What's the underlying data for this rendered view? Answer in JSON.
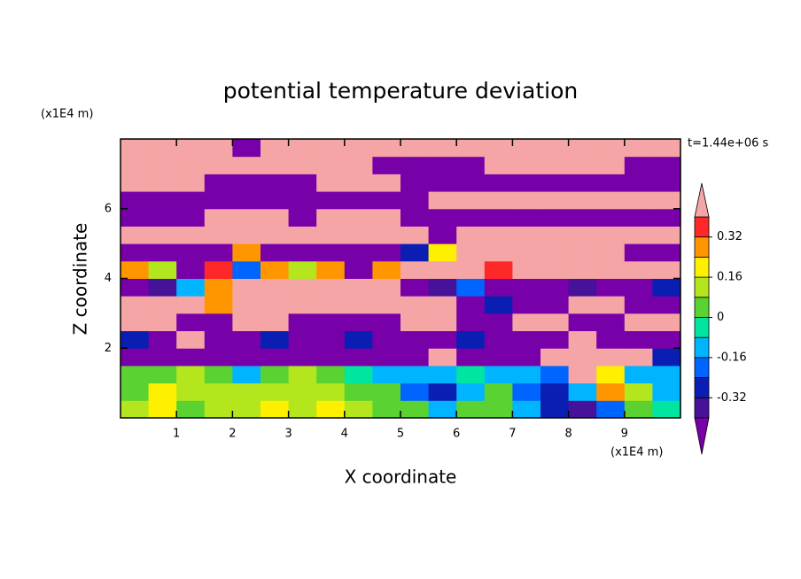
{
  "chart_data": {
    "type": "contour",
    "title": "potential temperature deviation",
    "xlabel": "X coordinate",
    "ylabel": "Z coordinate",
    "xunit": "(x1E4 m)",
    "yunit": "(x1E4 m)",
    "annotation": "t=1.44e+06 s",
    "xlim": [
      0,
      10
    ],
    "ylim": [
      0,
      8
    ],
    "xticks": [
      1,
      2,
      3,
      4,
      5,
      6,
      7,
      8,
      9
    ],
    "yticks": [
      2,
      4,
      6
    ],
    "levels": [
      -0.4,
      -0.32,
      -0.24,
      -0.16,
      -0.08,
      0,
      0.08,
      0.16,
      0.24,
      0.32,
      0.4
    ],
    "colors": [
      "#7800a8",
      "#46129a",
      "#0a1eb4",
      "#0064ff",
      "#00b4ff",
      "#00e6a0",
      "#5ad232",
      "#b4e61e",
      "#fff000",
      "#ff9600",
      "#ff2828",
      "#f5a5a5"
    ],
    "colorbar_ticks": [
      -0.32,
      -0.16,
      0,
      0.16,
      0.32
    ],
    "z": [
      [
        0.1,
        0.2,
        0.05,
        0.1,
        0.15,
        0.2,
        0.15,
        0.2,
        0.1,
        0.05,
        0,
        -0.1,
        0,
        0.05,
        -0.1,
        -0.3,
        -0.35,
        -0.2,
        0,
        -0.05
      ],
      [
        0.05,
        0.2,
        0.1,
        0.15,
        0.1,
        0.1,
        0.15,
        0.1,
        0.05,
        0,
        -0.2,
        -0.25,
        -0.1,
        0,
        -0.2,
        -0.3,
        -0.1,
        0.3,
        0.1,
        -0.1
      ],
      [
        0,
        0.05,
        0.1,
        0,
        -0.1,
        0,
        0.1,
        0.05,
        -0.05,
        -0.1,
        -0.15,
        -0.1,
        -0.05,
        -0.1,
        -0.15,
        -0.2,
        0.5,
        0.2,
        -0.15,
        -0.1
      ],
      [
        -0.45,
        -0.45,
        -0.45,
        -0.45,
        -0.45,
        -0.45,
        -0.45,
        -0.45,
        -0.45,
        -0.45,
        -0.45,
        0.5,
        -0.45,
        -0.45,
        -0.45,
        0.5,
        0.5,
        0.5,
        0.5,
        -0.3
      ],
      [
        -0.3,
        -0.45,
        0.5,
        -0.45,
        -0.45,
        -0.3,
        -0.45,
        -0.45,
        -0.3,
        -0.45,
        -0.45,
        -0.45,
        -0.3,
        -0.45,
        -0.45,
        -0.45,
        0.5,
        -0.45,
        -0.45,
        -0.45
      ],
      [
        0.5,
        0.5,
        -0.45,
        -0.45,
        0.5,
        0.5,
        -0.45,
        -0.45,
        -0.45,
        -0.45,
        0.5,
        0.5,
        -0.45,
        -0.45,
        0.5,
        0.5,
        -0.45,
        -0.45,
        0.5,
        0.5
      ],
      [
        0.5,
        0.5,
        0.5,
        0.3,
        0.5,
        0.5,
        0.5,
        0.5,
        0.5,
        0.5,
        0.5,
        0.5,
        -0.45,
        -0.3,
        -0.45,
        -0.45,
        0.5,
        0.5,
        -0.45,
        -0.45
      ],
      [
        -0.45,
        -0.35,
        -0.1,
        0.3,
        0.5,
        0.5,
        0.5,
        0.5,
        0.5,
        0.5,
        -0.45,
        -0.35,
        -0.2,
        -0.45,
        -0.45,
        -0.45,
        -0.35,
        -0.45,
        -0.45,
        -0.3
      ],
      [
        0.3,
        0.1,
        -0.45,
        0.35,
        -0.2,
        0.3,
        0.1,
        0.3,
        -0.45,
        0.3,
        0.5,
        0.5,
        0.5,
        0.35,
        0.5,
        0.5,
        0.5,
        0.5,
        0.5,
        0.5
      ],
      [
        -0.45,
        -0.45,
        -0.45,
        -0.45,
        0.3,
        -0.45,
        -0.45,
        -0.45,
        -0.45,
        -0.45,
        -0.3,
        0.2,
        0.5,
        0.5,
        0.5,
        0.5,
        0.5,
        0.5,
        -0.45,
        -0.45
      ],
      [
        0.5,
        0.5,
        0.5,
        0.5,
        0.5,
        0.5,
        0.5,
        0.5,
        0.5,
        0.5,
        0.5,
        -0.45,
        0.5,
        0.5,
        0.5,
        0.5,
        0.5,
        0.5,
        0.5,
        0.5
      ],
      [
        -0.45,
        -0.45,
        -0.45,
        0.5,
        0.5,
        0.5,
        -0.45,
        0.5,
        0.5,
        0.5,
        -0.45,
        -0.45,
        -0.45,
        -0.45,
        -0.45,
        -0.45,
        -0.45,
        -0.45,
        -0.45,
        -0.45
      ],
      [
        -0.45,
        -0.45,
        -0.45,
        -0.45,
        -0.45,
        -0.45,
        -0.45,
        -0.45,
        -0.45,
        -0.45,
        -0.45,
        0.5,
        0.5,
        0.5,
        0.5,
        0.5,
        0.5,
        0.5,
        0.5,
        0.5
      ],
      [
        0.5,
        0.5,
        0.5,
        -0.45,
        -0.45,
        -0.45,
        -0.45,
        0.5,
        0.5,
        0.5,
        -0.45,
        -0.45,
        -0.45,
        -0.45,
        -0.45,
        -0.45,
        -0.45,
        -0.45,
        -0.45,
        -0.45
      ],
      [
        0.5,
        0.5,
        0.5,
        0.5,
        0.5,
        0.5,
        0.5,
        0.5,
        0.5,
        -0.45,
        -0.45,
        -0.45,
        -0.45,
        0.5,
        0.5,
        0.5,
        0.5,
        0.5,
        -0.45,
        -0.45
      ],
      [
        0.5,
        0.5,
        0.5,
        0.5,
        -0.45,
        0.5,
        0.5,
        0.5,
        0.5,
        0.5,
        0.5,
        0.5,
        0.5,
        0.5,
        0.5,
        0.5,
        0.5,
        0.5,
        0.5,
        0.5
      ]
    ]
  }
}
